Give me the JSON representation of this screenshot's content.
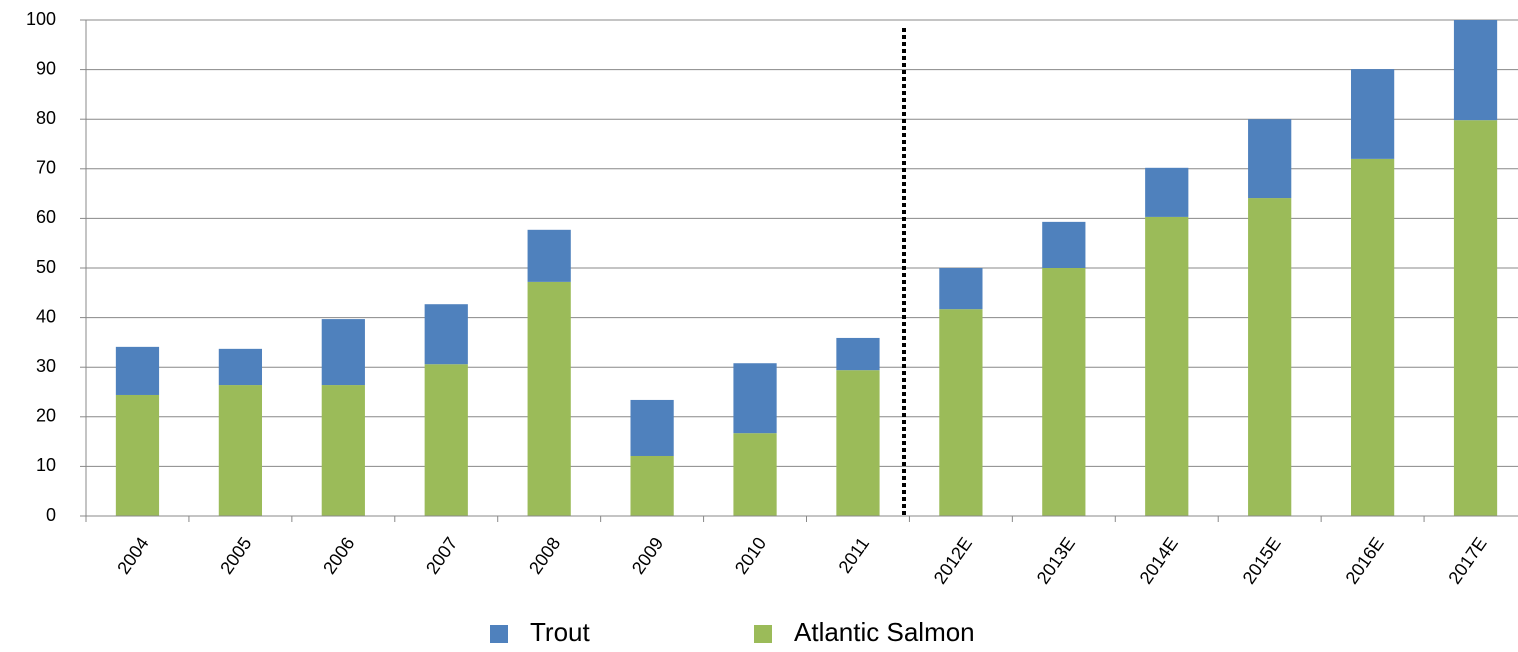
{
  "chart_data": {
    "type": "stacked_bar",
    "categories": [
      "2004",
      "2005",
      "2006",
      "2007",
      "2008",
      "2009",
      "2010",
      "2011",
      "2012E",
      "2013E",
      "2014E",
      "2015E",
      "2016E",
      "2017E"
    ],
    "series": [
      {
        "name": "Atlantic Salmon",
        "color": "#9bbb59",
        "values": [
          24.4,
          26.4,
          26.4,
          30.6,
          47.2,
          12.1,
          16.7,
          29.4,
          41.7,
          50,
          60.3,
          64.1,
          72,
          79.8
        ]
      },
      {
        "name": "Trout",
        "color": "#4f81bd",
        "values": [
          9.7,
          7.3,
          13.3,
          12.1,
          10.5,
          11.3,
          14.1,
          6.5,
          8.3,
          9.3,
          9.9,
          15.9,
          18.1,
          20.2
        ]
      }
    ],
    "ylim": [
      0,
      100
    ],
    "yticks": [
      0,
      10,
      20,
      30,
      40,
      50,
      60,
      70,
      80,
      90,
      100
    ],
    "grid": true,
    "legend": "bottom"
  }
}
